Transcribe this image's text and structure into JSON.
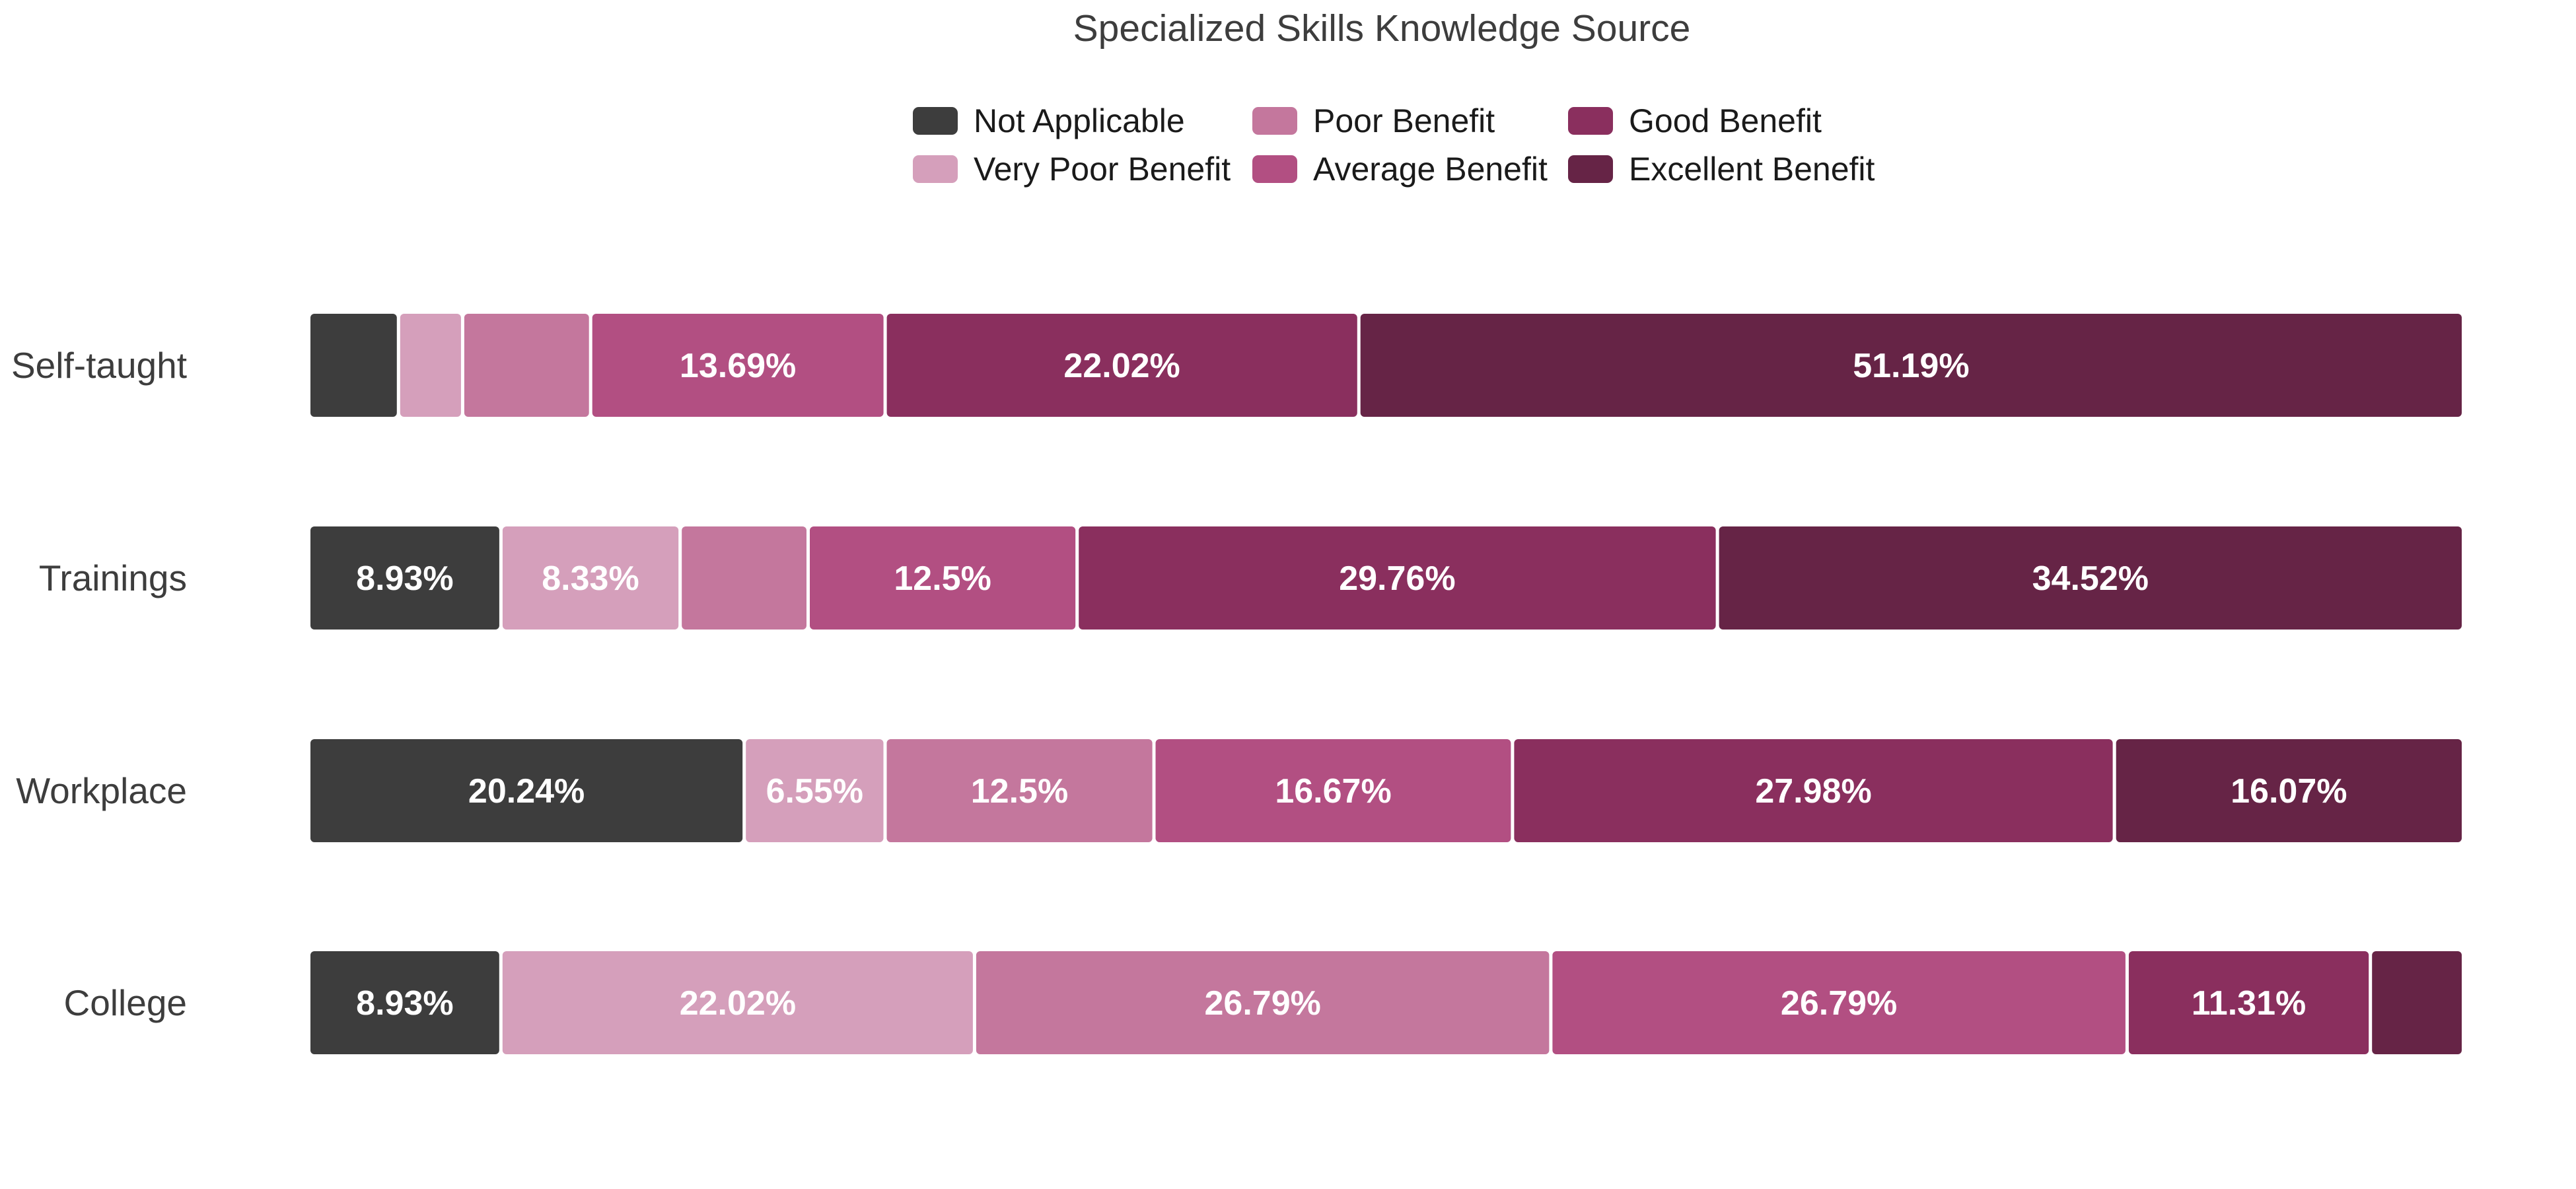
{
  "chart_data": {
    "type": "bar",
    "orientation": "horizontal",
    "stacked": true,
    "normalized": true,
    "title": "Specialized Skills Knowledge Source",
    "xlabel": "",
    "ylabel": "",
    "xlim": [
      0,
      100
    ],
    "grid": false,
    "legend_position": "top",
    "categories": [
      "Self-taught",
      "Trainings",
      "Workplace",
      "College"
    ],
    "series": [
      {
        "name": "Not Applicable",
        "color": "#3d3d3d",
        "values": [
          4.17,
          8.93,
          20.24,
          8.93
        ],
        "labels": [
          "",
          "8.93%",
          "20.24%",
          "8.93%"
        ]
      },
      {
        "name": "Very Poor Benefit",
        "color": "#d59fbb",
        "values": [
          2.98,
          8.33,
          6.55,
          22.02
        ],
        "labels": [
          "",
          "8.33%",
          "6.55%",
          "22.02%"
        ]
      },
      {
        "name": "Poor Benefit",
        "color": "#c4779d",
        "values": [
          5.95,
          5.95,
          12.5,
          26.79
        ],
        "labels": [
          "",
          "",
          "12.5%",
          "26.79%"
        ]
      },
      {
        "name": "Average Benefit",
        "color": "#b24f82",
        "values": [
          13.69,
          12.5,
          16.67,
          26.79
        ],
        "labels": [
          "13.69%",
          "12.5%",
          "16.67%",
          "26.79%"
        ]
      },
      {
        "name": "Good Benefit",
        "color": "#8a2f5e",
        "values": [
          22.02,
          29.76,
          27.98,
          11.31
        ],
        "labels": [
          "22.02%",
          "29.76%",
          "27.98%",
          "11.31%"
        ]
      },
      {
        "name": "Excellent Benefit",
        "color": "#662446",
        "values": [
          51.19,
          34.52,
          16.07,
          4.17
        ],
        "labels": [
          "51.19%",
          "34.52%",
          "16.07%",
          ""
        ]
      }
    ]
  }
}
